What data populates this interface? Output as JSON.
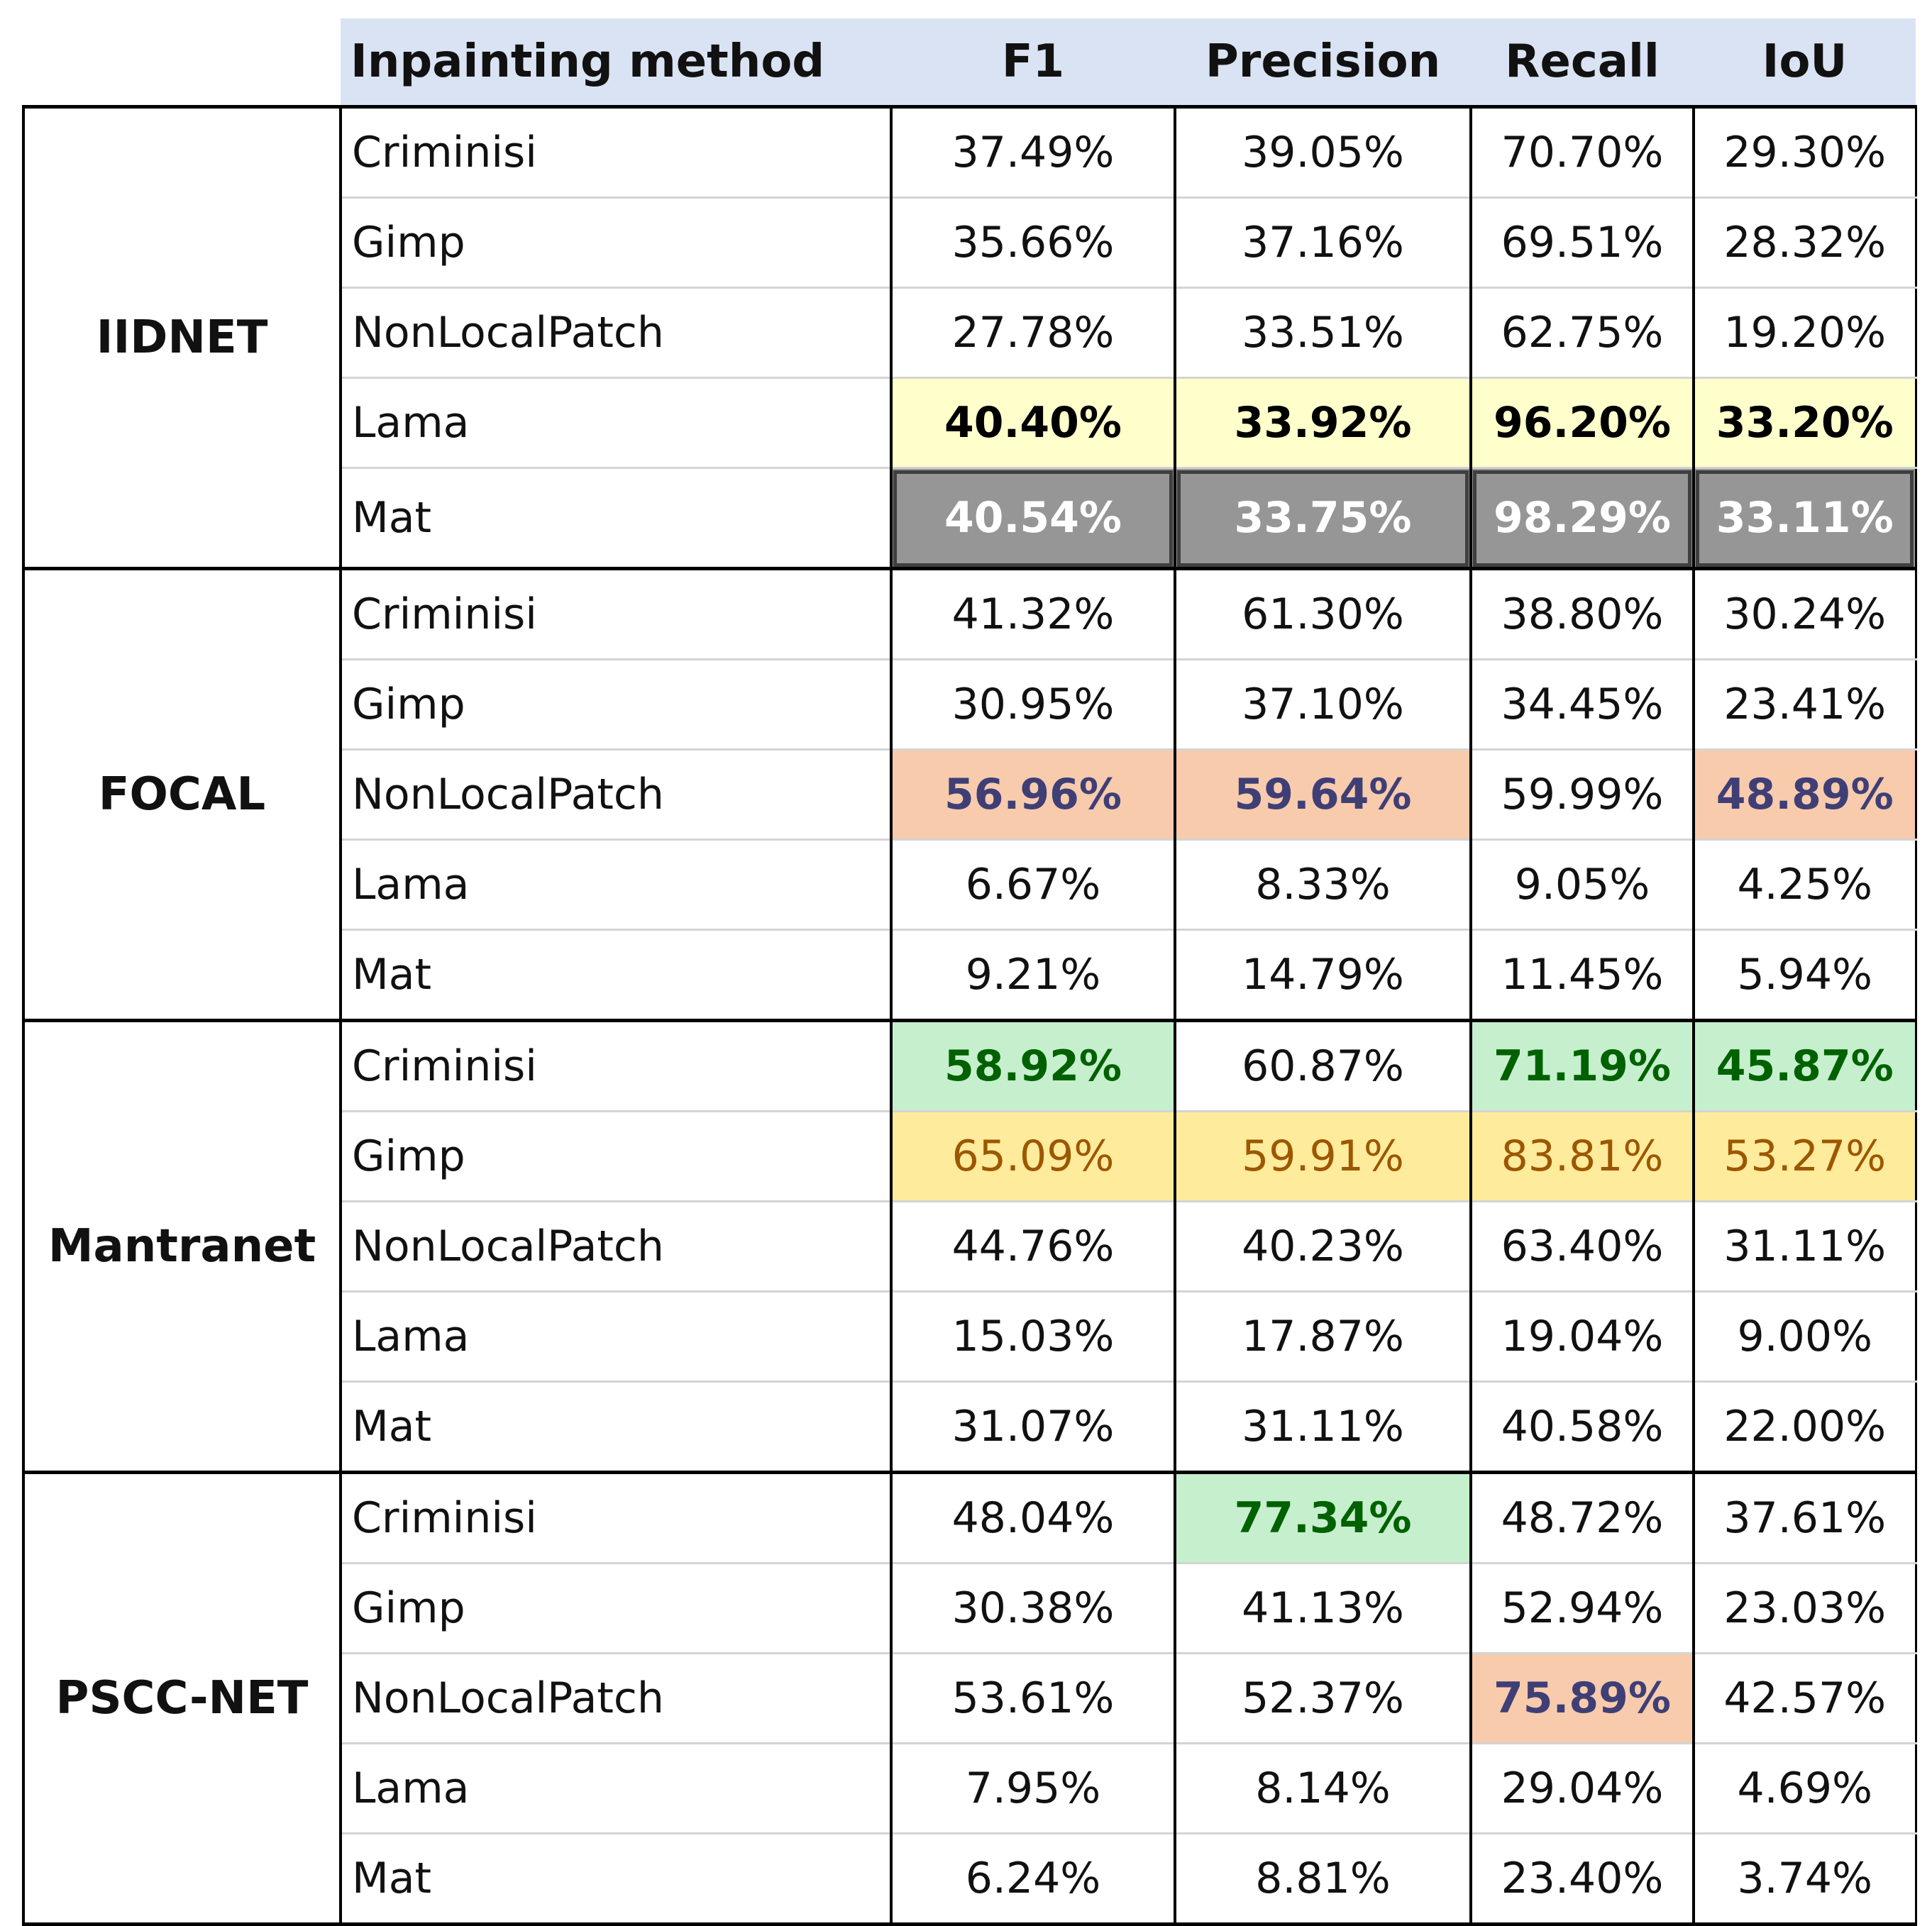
{
  "table": {
    "header": [
      "Inpainting method",
      "F1",
      "Precision",
      "Recall",
      "IoU"
    ],
    "groups": [
      {
        "name": "IIDNET",
        "rows": [
          {
            "method": "Criminisi",
            "values": [
              "37.49%",
              "39.05%",
              "70.70%",
              "29.30%"
            ]
          },
          {
            "method": "Gimp",
            "values": [
              "35.66%",
              "37.16%",
              "69.51%",
              "28.32%"
            ]
          },
          {
            "method": "NonLocalPatch",
            "values": [
              "27.78%",
              "33.51%",
              "62.75%",
              "19.20%"
            ]
          },
          {
            "method": "Lama",
            "values": [
              "40.40%",
              "33.92%",
              "96.20%",
              "33.20%"
            ]
          },
          {
            "method": "Mat",
            "values": [
              "40.54%",
              "33.75%",
              "98.29%",
              "33.11%"
            ]
          }
        ]
      },
      {
        "name": "FOCAL",
        "rows": [
          {
            "method": "Criminisi",
            "values": [
              "41.32%",
              "61.30%",
              "38.80%",
              "30.24%"
            ]
          },
          {
            "method": "Gimp",
            "values": [
              "30.95%",
              "37.10%",
              "34.45%",
              "23.41%"
            ]
          },
          {
            "method": "NonLocalPatch",
            "values": [
              "56.96%",
              "59.64%",
              "59.99%",
              "48.89%"
            ]
          },
          {
            "method": "Lama",
            "values": [
              "6.67%",
              "8.33%",
              "9.05%",
              "4.25%"
            ]
          },
          {
            "method": "Mat",
            "values": [
              "9.21%",
              "14.79%",
              "11.45%",
              "5.94%"
            ]
          }
        ]
      },
      {
        "name": "Mantranet",
        "rows": [
          {
            "method": "Criminisi",
            "values": [
              "58.92%",
              "60.87%",
              "71.19%",
              "45.87%"
            ]
          },
          {
            "method": "Gimp",
            "values": [
              "65.09%",
              "59.91%",
              "83.81%",
              "53.27%"
            ]
          },
          {
            "method": "NonLocalPatch",
            "values": [
              "44.76%",
              "40.23%",
              "63.40%",
              "31.11%"
            ]
          },
          {
            "method": "Lama",
            "values": [
              "15.03%",
              "17.87%",
              "19.04%",
              "9.00%"
            ]
          },
          {
            "method": "Mat",
            "values": [
              "31.07%",
              "31.11%",
              "40.58%",
              "22.00%"
            ]
          }
        ]
      },
      {
        "name": "PSCC-NET",
        "rows": [
          {
            "method": "Criminisi",
            "values": [
              "48.04%",
              "77.34%",
              "48.72%",
              "37.61%"
            ]
          },
          {
            "method": "Gimp",
            "values": [
              "30.38%",
              "41.13%",
              "52.94%",
              "23.03%"
            ]
          },
          {
            "method": "NonLocalPatch",
            "values": [
              "53.61%",
              "52.37%",
              "75.89%",
              "42.57%"
            ]
          },
          {
            "method": "Lama",
            "values": [
              "7.95%",
              "8.14%",
              "29.04%",
              "4.69%"
            ]
          },
          {
            "method": "Mat",
            "values": [
              "6.24%",
              "8.81%",
              "23.40%",
              "3.74%"
            ]
          }
        ]
      }
    ]
  }
}
